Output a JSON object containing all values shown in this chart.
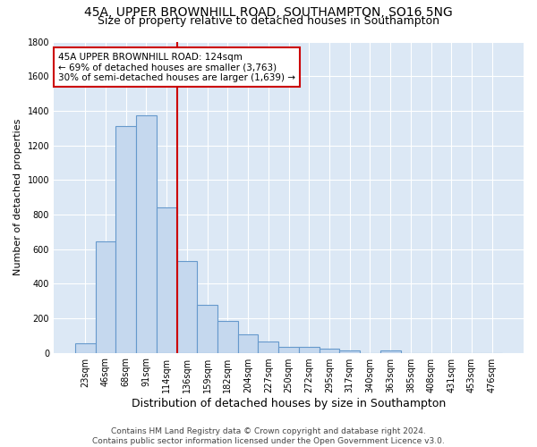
{
  "title": "45A, UPPER BROWNHILL ROAD, SOUTHAMPTON, SO16 5NG",
  "subtitle": "Size of property relative to detached houses in Southampton",
  "xlabel": "Distribution of detached houses by size in Southampton",
  "ylabel": "Number of detached properties",
  "categories": [
    "23sqm",
    "46sqm",
    "68sqm",
    "91sqm",
    "114sqm",
    "136sqm",
    "159sqm",
    "182sqm",
    "204sqm",
    "227sqm",
    "250sqm",
    "272sqm",
    "295sqm",
    "317sqm",
    "340sqm",
    "363sqm",
    "385sqm",
    "408sqm",
    "431sqm",
    "453sqm",
    "476sqm"
  ],
  "values": [
    55,
    645,
    1310,
    1375,
    840,
    530,
    275,
    185,
    105,
    65,
    35,
    32,
    22,
    12,
    0,
    12,
    0,
    0,
    0,
    0,
    0
  ],
  "bar_color": "#c5d8ee",
  "bar_edge_color": "#6699cc",
  "vline_x": 4.5,
  "vline_color": "#cc0000",
  "annotation_text": "45A UPPER BROWNHILL ROAD: 124sqm\n← 69% of detached houses are smaller (3,763)\n30% of semi-detached houses are larger (1,639) →",
  "annotation_box_color": "#ffffff",
  "annotation_box_edge": "#cc0000",
  "ylim": [
    0,
    1800
  ],
  "yticks": [
    0,
    200,
    400,
    600,
    800,
    1000,
    1200,
    1400,
    1600,
    1800
  ],
  "bg_color": "#dce8f5",
  "grid_color": "#ffffff",
  "footer": "Contains HM Land Registry data © Crown copyright and database right 2024.\nContains public sector information licensed under the Open Government Licence v3.0.",
  "title_fontsize": 10,
  "subtitle_fontsize": 9,
  "xlabel_fontsize": 9,
  "ylabel_fontsize": 8,
  "tick_fontsize": 7,
  "annotation_fontsize": 7.5,
  "footer_fontsize": 6.5
}
